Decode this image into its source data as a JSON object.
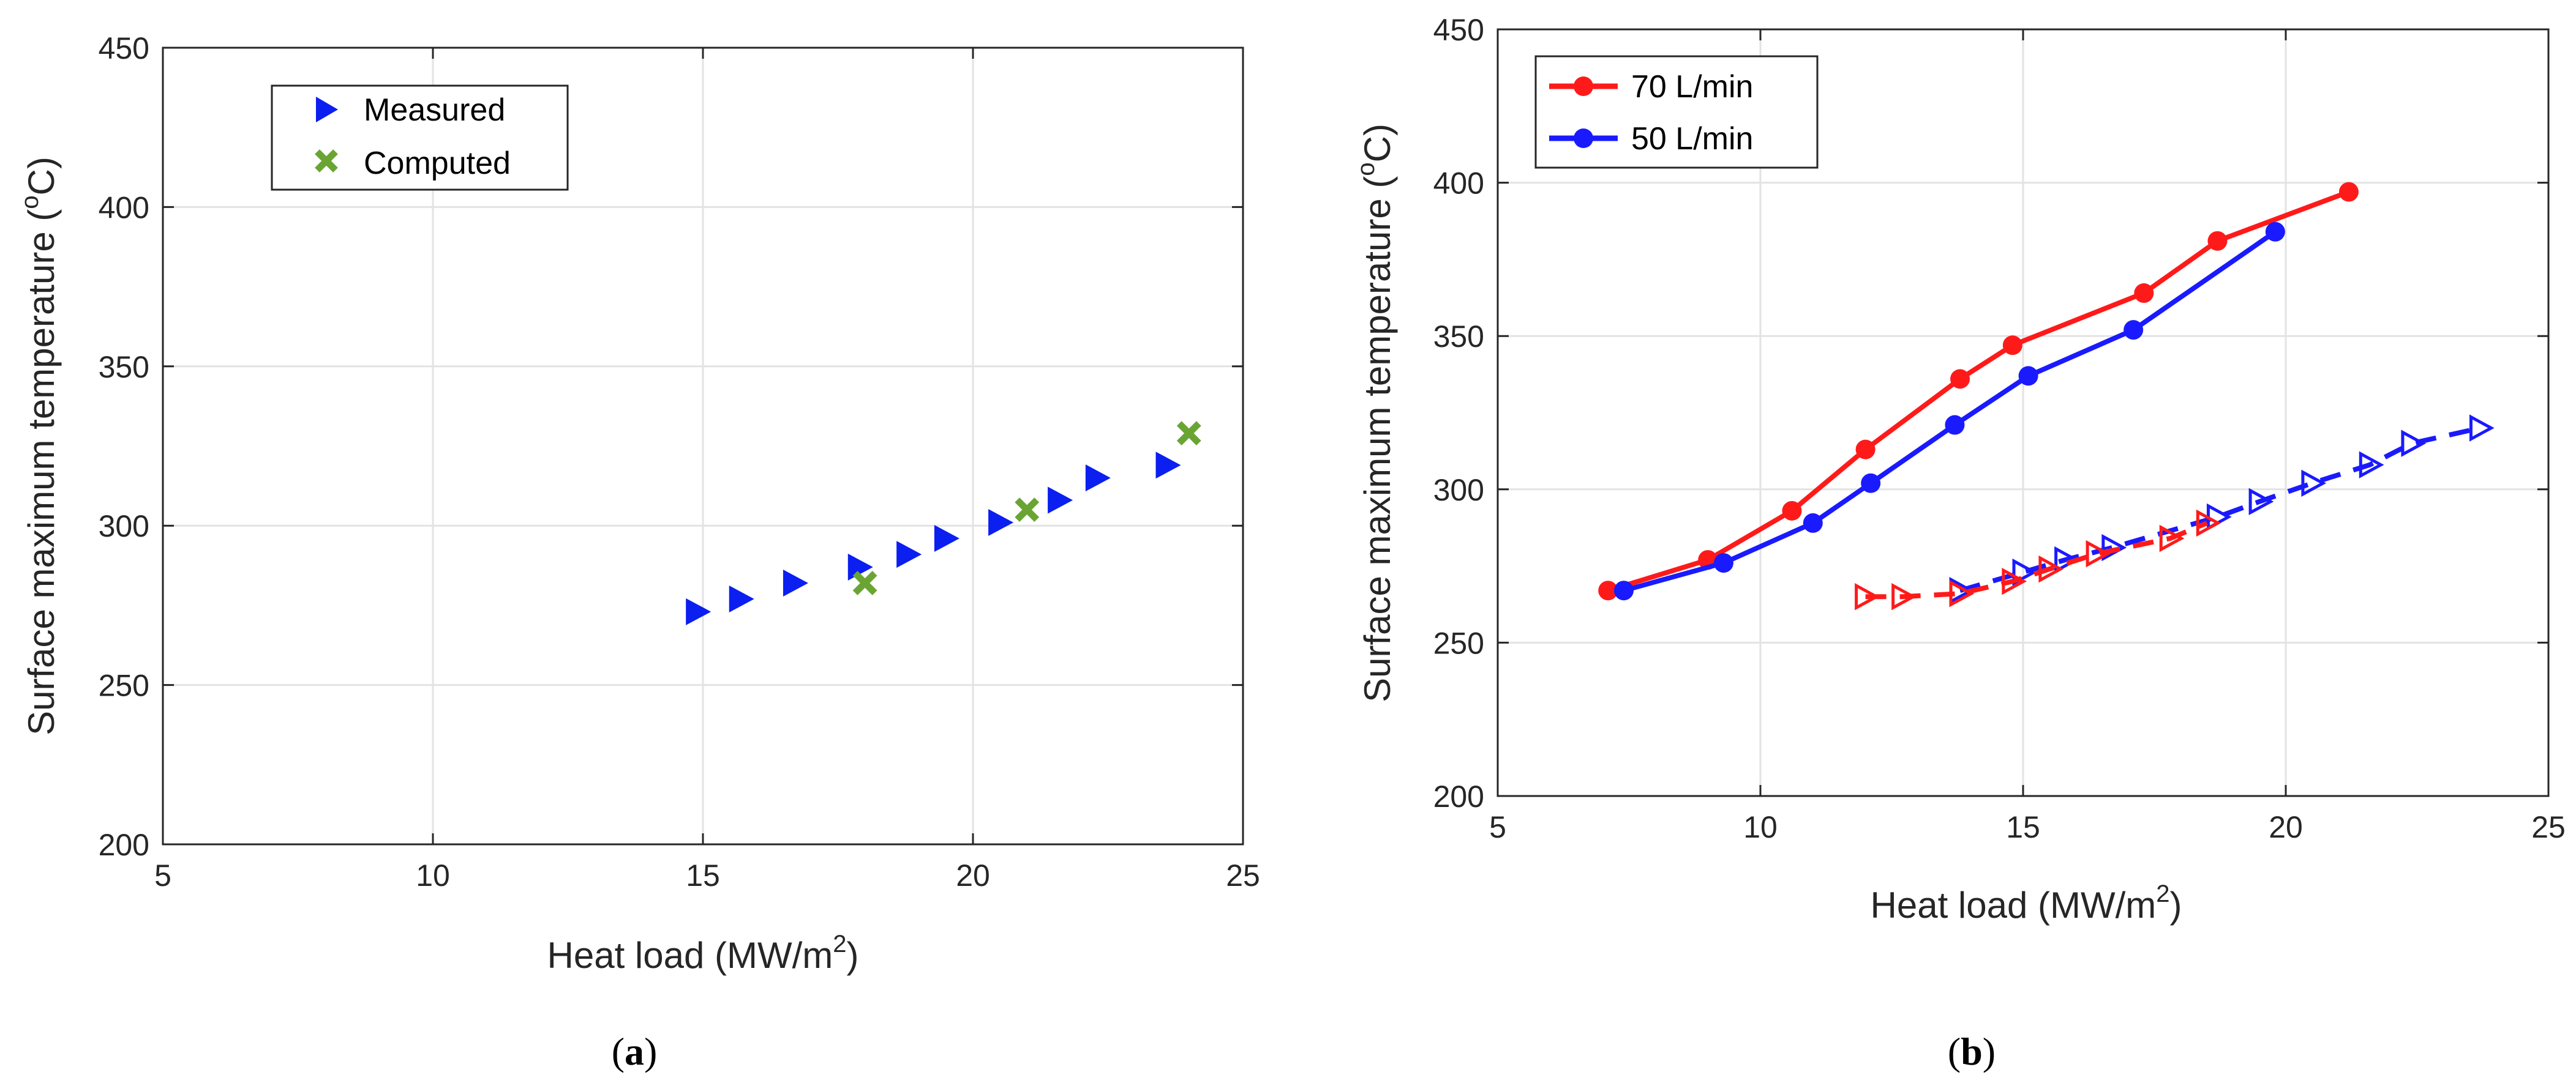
{
  "chart_data": [
    {
      "type": "scatter",
      "panel_label": "a",
      "title": "",
      "xlabel": "Heat load (MW/m",
      "xlabel_sup": "2",
      "xlabel_end": ")",
      "ylabel": "Surface maximum temperature (",
      "ylabel_sup": "o",
      "ylabel_end": "C)",
      "xlim": [
        5,
        25
      ],
      "ylim": [
        200,
        450
      ],
      "xticks": [
        5,
        10,
        15,
        20,
        25
      ],
      "yticks": [
        200,
        250,
        300,
        350,
        400,
        450
      ],
      "grid": true,
      "legend_position": "top-left",
      "series": [
        {
          "name": "Measured",
          "marker": "triangle-right",
          "color": "#0a1ff0",
          "x": [
            14.9,
            15.7,
            16.7,
            17.9,
            18.8,
            19.5,
            20.5,
            21.6,
            22.3,
            23.6
          ],
          "y": [
            273,
            277,
            282,
            287,
            291,
            296,
            301,
            308,
            315,
            319
          ]
        },
        {
          "name": "Computed",
          "marker": "x",
          "color": "#6aa534",
          "x": [
            18.0,
            21.0,
            24.0
          ],
          "y": [
            282,
            305,
            329
          ]
        }
      ]
    },
    {
      "type": "line",
      "panel_label": "b",
      "title": "",
      "xlabel": "Heat load (MW/m",
      "xlabel_sup": "2",
      "xlabel_end": ")",
      "ylabel": "Surface maximum temperature (",
      "ylabel_sup": "o",
      "ylabel_end": "C)",
      "xlim": [
        5,
        25
      ],
      "ylim": [
        200,
        450
      ],
      "xticks": [
        5,
        10,
        15,
        20,
        25
      ],
      "yticks": [
        200,
        250,
        300,
        350,
        400,
        450
      ],
      "grid": true,
      "legend_position": "top-left",
      "series": [
        {
          "name": "70 L/min",
          "color": "#ff1a1a",
          "style": "solid",
          "marker": "circle",
          "x": [
            7.1,
            9.0,
            10.6,
            12.0,
            13.8,
            14.8,
            17.3,
            18.7,
            21.2
          ],
          "y": [
            267,
            277,
            293,
            313,
            336,
            347,
            364,
            381,
            397
          ]
        },
        {
          "name": "50 L/min",
          "color": "#1a1aff",
          "style": "solid",
          "marker": "circle",
          "x": [
            7.4,
            9.3,
            11.0,
            12.1,
            13.7,
            15.1,
            17.1,
            19.8
          ],
          "y": [
            267,
            276,
            289,
            302,
            321,
            337,
            352,
            384
          ]
        },
        {
          "name": "",
          "color": "#1a1aff",
          "style": "dashed",
          "marker": "triangle-right-open",
          "x": [
            13.8,
            15.0,
            15.8,
            16.7,
            18.7,
            19.5,
            20.5,
            21.6,
            22.4,
            23.7
          ],
          "y": [
            267,
            273,
            277,
            281,
            291,
            296,
            302,
            308,
            315,
            320
          ]
        },
        {
          "name": "",
          "color": "#ff1a1a",
          "style": "dashed",
          "marker": "triangle-right-open",
          "x": [
            12.0,
            12.7,
            13.8,
            14.8,
            15.5,
            16.4,
            17.8,
            18.5
          ],
          "y": [
            265,
            265,
            266,
            270,
            274,
            279,
            284,
            289
          ]
        }
      ]
    }
  ]
}
